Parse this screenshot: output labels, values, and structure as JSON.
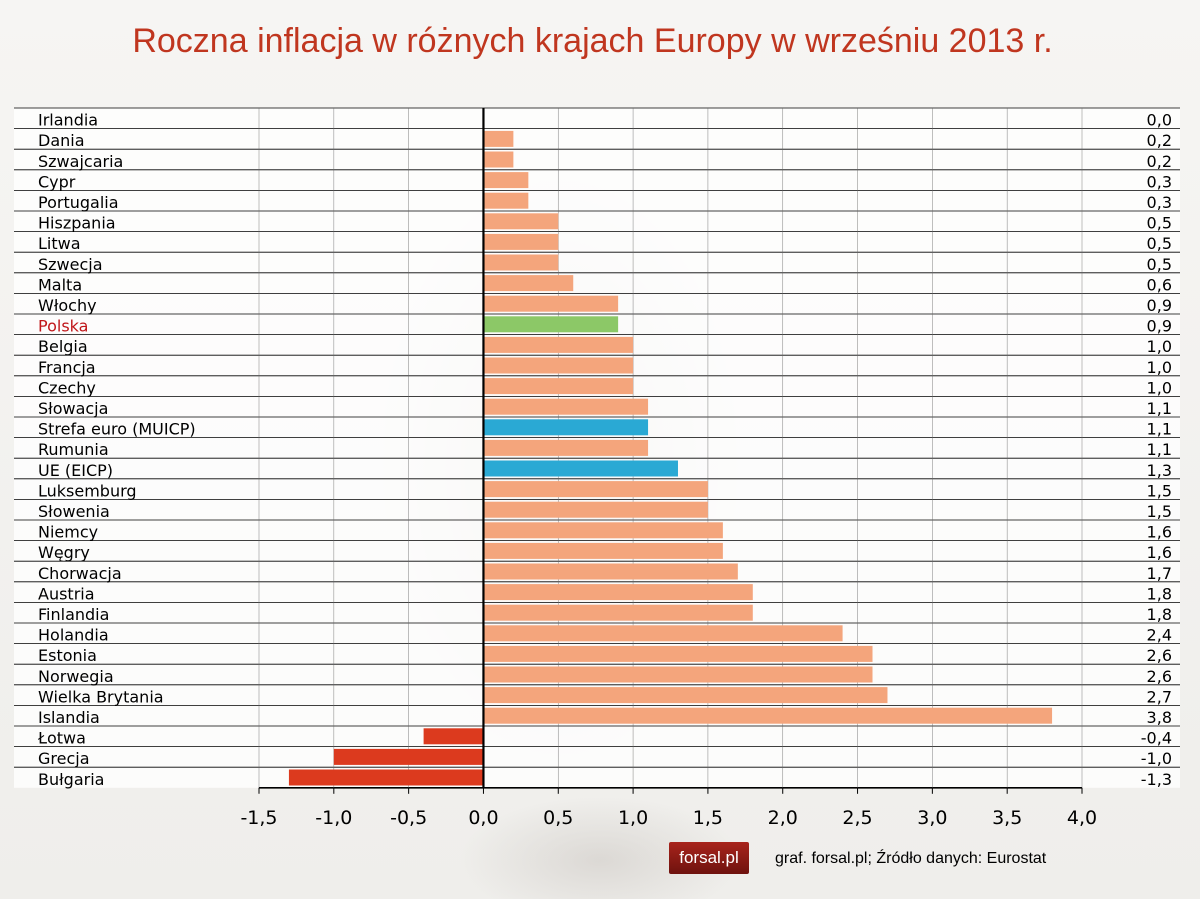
{
  "chart_data": {
    "type": "bar",
    "orientation": "horizontal",
    "title": "Roczna inflacja w różnych krajach Europy w wrześniu 2013 r.",
    "categories": [
      "Irlandia",
      "Dania",
      "Szwajcaria",
      "Cypr",
      "Portugalia",
      "Hiszpania",
      "Litwa",
      "Szwecja",
      "Malta",
      "Włochy",
      "Polska",
      "Belgia",
      "Francja",
      "Czechy",
      "Słowacja",
      "Strefa euro (MUICP)",
      "Rumunia",
      "UE (EICP)",
      "Luksemburg",
      "Słowenia",
      "Niemcy",
      "Węgry",
      "Chorwacja",
      "Austria",
      "Finlandia",
      "Holandia",
      "Estonia",
      "Norwegia",
      "Wielka Brytania",
      "Islandia",
      "Łotwa",
      "Grecja",
      "Bułgaria"
    ],
    "values": [
      0.0,
      0.2,
      0.2,
      0.3,
      0.3,
      0.5,
      0.5,
      0.5,
      0.6,
      0.9,
      0.9,
      1.0,
      1.0,
      1.0,
      1.1,
      1.1,
      1.1,
      1.3,
      1.5,
      1.5,
      1.6,
      1.6,
      1.7,
      1.8,
      1.8,
      2.4,
      2.6,
      2.6,
      2.7,
      3.8,
      -0.4,
      -1.0,
      -1.3
    ],
    "value_labels": [
      "0,0",
      "0,2",
      "0,2",
      "0,3",
      "0,3",
      "0,5",
      "0,5",
      "0,5",
      "0,6",
      "0,9",
      "0,9",
      "1,0",
      "1,0",
      "1,0",
      "1,1",
      "1,1",
      "1,1",
      "1,3",
      "1,5",
      "1,5",
      "1,6",
      "1,6",
      "1,7",
      "1,8",
      "1,8",
      "2,4",
      "2,6",
      "2,6",
      "2,7",
      "3,8",
      "-0,4",
      "-1,0",
      "-1,3"
    ],
    "xlim": [
      -1.5,
      4.0
    ],
    "x_ticks": [
      -1.5,
      -1.0,
      -0.5,
      0.0,
      0.5,
      1.0,
      1.5,
      2.0,
      2.5,
      3.0,
      3.5,
      4.0
    ],
    "x_tick_labels": [
      "-1,5",
      "-1,0",
      "-0,5",
      "0,0",
      "0,5",
      "1,0",
      "1,5",
      "2,0",
      "2,5",
      "3,0",
      "3,5",
      "4,0"
    ],
    "highlight_label": "Polska",
    "colors": {
      "positive": "#f4a57c",
      "negative": "#dc3a1e",
      "poland": "#8cc867",
      "aggregate": "#2aa9d4",
      "highlight_text": "#c0161a"
    },
    "bar_colors": [
      "positive",
      "positive",
      "positive",
      "positive",
      "positive",
      "positive",
      "positive",
      "positive",
      "positive",
      "positive",
      "poland",
      "positive",
      "positive",
      "positive",
      "positive",
      "aggregate",
      "positive",
      "aggregate",
      "positive",
      "positive",
      "positive",
      "positive",
      "positive",
      "positive",
      "positive",
      "positive",
      "positive",
      "positive",
      "positive",
      "positive",
      "negative",
      "negative",
      "negative"
    ],
    "grid": true
  },
  "logo_text": "forsal.pl",
  "source_text": "graf. forsal.pl; Źródło danych: Eurostat"
}
